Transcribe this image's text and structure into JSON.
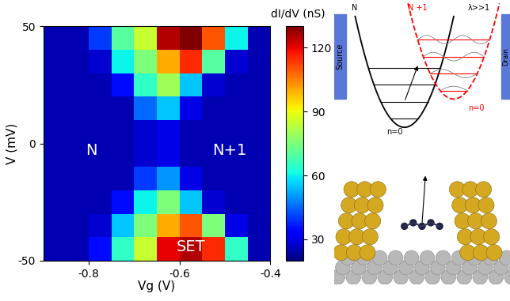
{
  "chart_data": {
    "type": "heatmap",
    "x_label": "Vg (V)",
    "y_label": "V (mV)",
    "xlim": [
      -0.9,
      -0.4
    ],
    "ylim": [
      -50,
      50
    ],
    "xticks": [
      -0.8,
      -0.6,
      -0.4
    ],
    "yticks": [
      -50,
      0,
      50
    ],
    "x_edges": [
      -0.9,
      -0.85,
      -0.8,
      -0.75,
      -0.7,
      -0.65,
      -0.6,
      -0.55,
      -0.5,
      -0.45,
      -0.4
    ],
    "y_edges": [
      -50,
      -40,
      -30,
      -20,
      -10,
      0,
      10,
      20,
      30,
      40,
      50
    ],
    "cells": [
      [
        25,
        25,
        35,
        65,
        85,
        120,
        125,
        115,
        65,
        25
      ],
      [
        25,
        25,
        28,
        55,
        75,
        100,
        110,
        75,
        30,
        25
      ],
      [
        25,
        25,
        25,
        35,
        60,
        75,
        55,
        28,
        25,
        25
      ],
      [
        25,
        25,
        25,
        25,
        40,
        50,
        30,
        25,
        25,
        25
      ],
      [
        25,
        25,
        25,
        25,
        28,
        30,
        25,
        25,
        25,
        25
      ],
      [
        25,
        25,
        25,
        25,
        28,
        30,
        25,
        25,
        25,
        25
      ],
      [
        25,
        25,
        25,
        25,
        45,
        55,
        30,
        25,
        25,
        25
      ],
      [
        25,
        25,
        25,
        35,
        65,
        80,
        55,
        28,
        25,
        25
      ],
      [
        25,
        25,
        28,
        60,
        75,
        100,
        115,
        70,
        28,
        25
      ],
      [
        25,
        25,
        40,
        70,
        85,
        125,
        130,
        110,
        60,
        25
      ]
    ],
    "colorbar": {
      "label": "dI/dV (nS)",
      "range": [
        20,
        130
      ],
      "ticks": [
        30,
        60,
        90,
        120
      ]
    },
    "annotations": [
      "N",
      "N+1",
      "SET"
    ]
  },
  "diagram": {
    "left_parabola": "N",
    "right_parabola": "N +1",
    "coupling": "λ>>1",
    "source": "Source",
    "drain": "Drain",
    "left_ground": "n=0",
    "right_ground": "n=0"
  }
}
